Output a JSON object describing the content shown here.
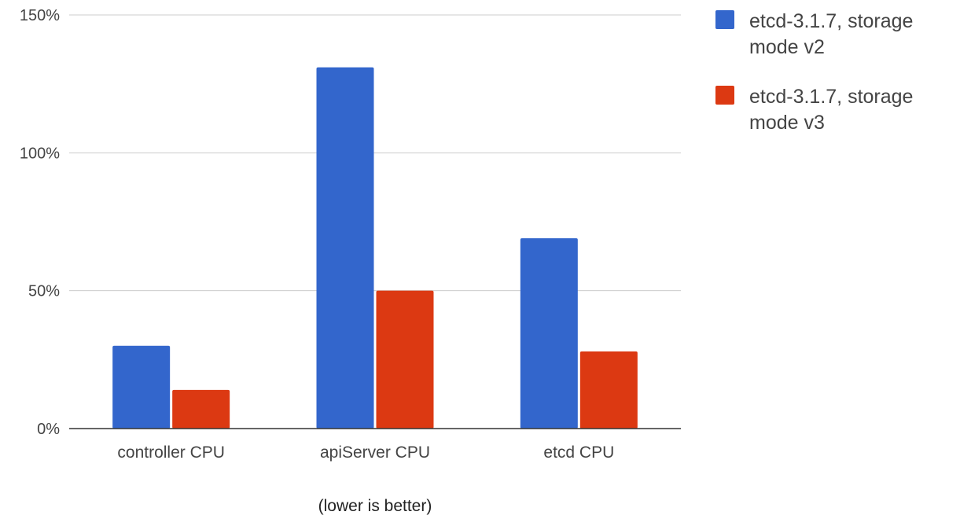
{
  "chart_data": {
    "type": "bar",
    "categories": [
      "controller CPU",
      "apiServer CPU",
      "etcd CPU"
    ],
    "series": [
      {
        "name": "etcd-3.1.7, storage mode v2",
        "values": [
          30,
          131,
          69
        ]
      },
      {
        "name": "etcd-3.1.7, storage mode v3",
        "values": [
          14,
          50,
          28
        ]
      }
    ],
    "ylim": [
      0,
      150
    ],
    "yticks": [
      {
        "value": 0,
        "label": "0%"
      },
      {
        "value": 50,
        "label": "50%"
      },
      {
        "value": 100,
        "label": "100%"
      },
      {
        "value": 150,
        "label": "150%"
      }
    ],
    "xlabel": "(lower is better)",
    "ylabel": "",
    "title": "",
    "grid": true,
    "legend": {
      "position": "right",
      "entries": [
        {
          "lines": [
            "etcd-3.1.7, storage",
            "mode v2"
          ]
        },
        {
          "lines": [
            "etcd-3.1.7, storage",
            "mode v3"
          ]
        }
      ]
    },
    "colors": [
      "#3366cc",
      "#dc3912"
    ]
  }
}
